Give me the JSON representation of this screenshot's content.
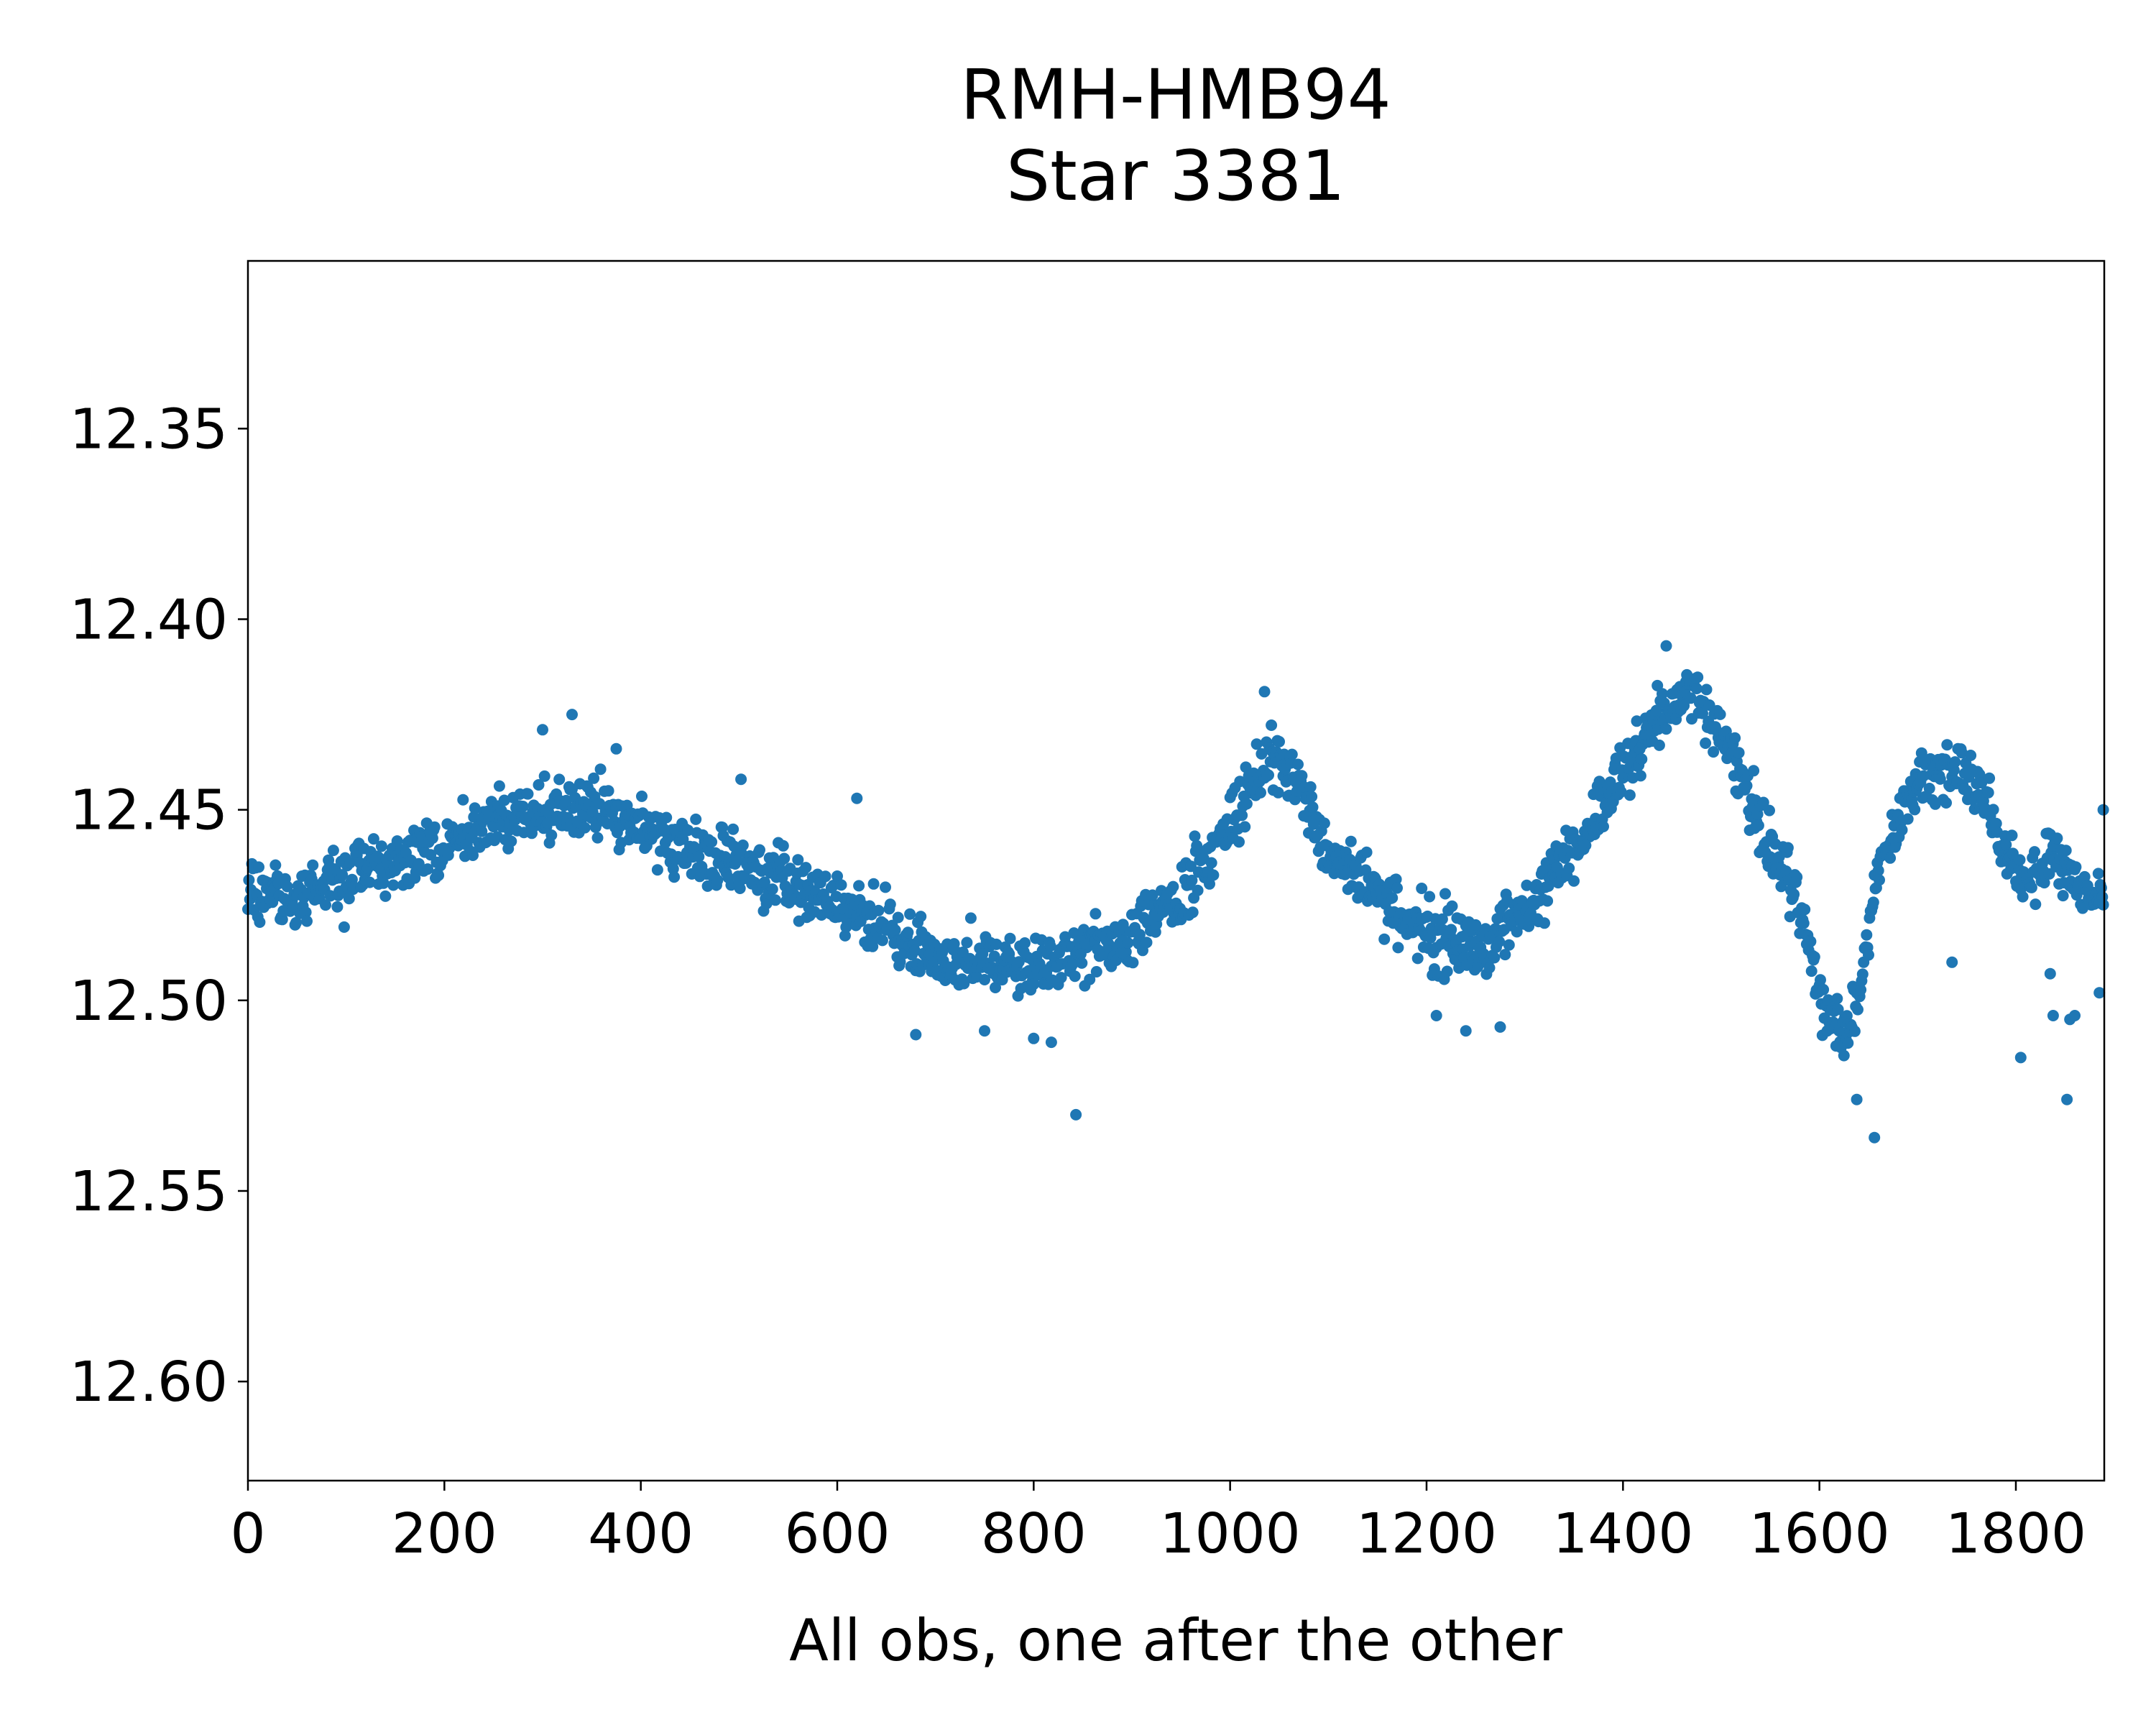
{
  "chart_data": {
    "type": "scatter",
    "title_line1": "RMH-HMB94",
    "title_line2": "Star 3381",
    "xlabel": "All obs, one after the other",
    "ylabel": "",
    "xlim": [
      0,
      1890
    ],
    "ylim": [
      12.626,
      12.306
    ],
    "y_inverted": true,
    "xticks": [
      0,
      200,
      400,
      600,
      800,
      1000,
      1200,
      1400,
      1600,
      1800
    ],
    "xtick_labels": [
      "0",
      "200",
      "400",
      "600",
      "800",
      "1000",
      "1200",
      "1400",
      "1600",
      "1800"
    ],
    "yticks": [
      12.35,
      12.4,
      12.45,
      12.5,
      12.55,
      12.6
    ],
    "ytick_labels": [
      "12.35",
      "12.40",
      "12.45",
      "12.50",
      "12.55",
      "12.60"
    ],
    "grid": false,
    "marker_color": "#1f77b4",
    "n_points": 1890,
    "trend": {
      "x": [
        0,
        40,
        100,
        200,
        300,
        350,
        400,
        500,
        600,
        700,
        800,
        850,
        900,
        950,
        1000,
        1040,
        1060,
        1100,
        1200,
        1260,
        1290,
        1350,
        1400,
        1450,
        1470,
        1500,
        1550,
        1580,
        1600,
        1625,
        1640,
        1660,
        1700,
        1730,
        1760,
        1780,
        1800,
        1820,
        1840,
        1860,
        1889
      ],
      "y": [
        12.468,
        12.474,
        12.468,
        12.458,
        12.45,
        12.45,
        12.455,
        12.466,
        12.473,
        12.489,
        12.492,
        12.487,
        12.484,
        12.473,
        12.455,
        12.437,
        12.438,
        12.46,
        12.483,
        12.487,
        12.478,
        12.462,
        12.44,
        12.423,
        12.42,
        12.43,
        12.458,
        12.475,
        12.5,
        12.508,
        12.5,
        12.465,
        12.442,
        12.44,
        12.443,
        12.455,
        12.468,
        12.468,
        12.46,
        12.47,
        12.475
      ]
    },
    "outliers": [
      {
        "x": 300,
        "y": 12.429
      },
      {
        "x": 330,
        "y": 12.425
      },
      {
        "x": 375,
        "y": 12.434
      },
      {
        "x": 502,
        "y": 12.442
      },
      {
        "x": 620,
        "y": 12.447
      },
      {
        "x": 680,
        "y": 12.509
      },
      {
        "x": 750,
        "y": 12.508
      },
      {
        "x": 800,
        "y": 12.51
      },
      {
        "x": 818,
        "y": 12.511
      },
      {
        "x": 843,
        "y": 12.53
      },
      {
        "x": 1035,
        "y": 12.419
      },
      {
        "x": 1210,
        "y": 12.504
      },
      {
        "x": 1240,
        "y": 12.508
      },
      {
        "x": 1275,
        "y": 12.507
      },
      {
        "x": 1444,
        "y": 12.407
      },
      {
        "x": 1656,
        "y": 12.536
      },
      {
        "x": 1638,
        "y": 12.526
      },
      {
        "x": 1735,
        "y": 12.49
      },
      {
        "x": 1805,
        "y": 12.515
      },
      {
        "x": 1835,
        "y": 12.493
      },
      {
        "x": 1838,
        "y": 12.504
      },
      {
        "x": 1852,
        "y": 12.526
      },
      {
        "x": 1855,
        "y": 12.505
      },
      {
        "x": 1860,
        "y": 12.504
      },
      {
        "x": 1885,
        "y": 12.498
      },
      {
        "x": 1889,
        "y": 12.45
      }
    ]
  }
}
